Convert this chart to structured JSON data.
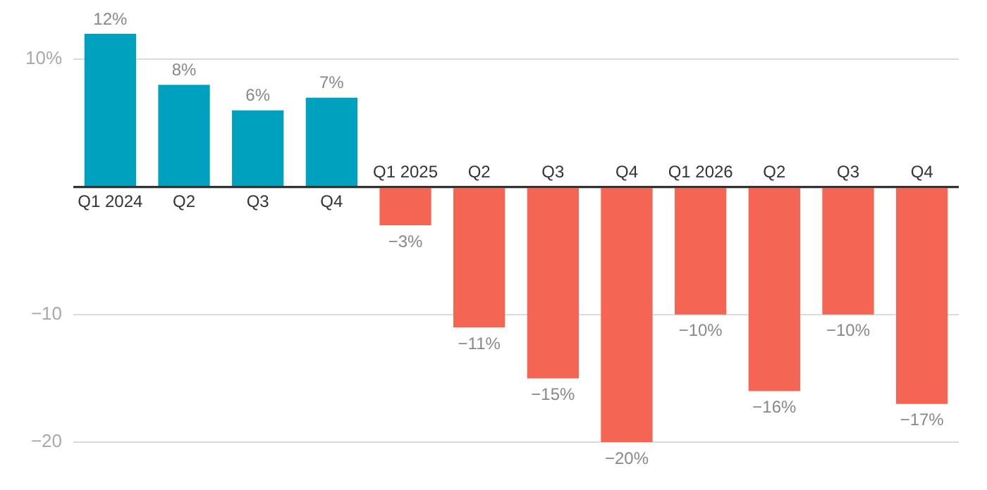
{
  "chart_data": {
    "type": "bar",
    "categories": [
      "Q1 2024",
      "Q2",
      "Q3",
      "Q4",
      "Q1 2025",
      "Q2",
      "Q3",
      "Q4",
      "Q1 2026",
      "Q2",
      "Q3",
      "Q4"
    ],
    "values": [
      12,
      8,
      6,
      7,
      -3,
      -11,
      -15,
      -20,
      -10,
      -16,
      -10,
      -17
    ],
    "colors": [
      "#00a0bf",
      "#00a0bf",
      "#00a0bf",
      "#00a0bf",
      "#f46554",
      "#f46554",
      "#f46554",
      "#f46554",
      "#f46554",
      "#f46554",
      "#f46554",
      "#f46554"
    ],
    "value_labels": [
      "12%",
      "8%",
      "6%",
      "7%",
      "−3%",
      "−11%",
      "−15%",
      "−20%",
      "−10%",
      "−16%",
      "−10%",
      "−17%"
    ],
    "ylim": [
      -20,
      12
    ],
    "yticks": [
      {
        "value": 10,
        "label": "10%"
      },
      {
        "value": 0,
        "label": null
      },
      {
        "value": -10,
        "label": "−10"
      },
      {
        "value": -20,
        "label": "−20"
      }
    ],
    "grid": "y"
  }
}
